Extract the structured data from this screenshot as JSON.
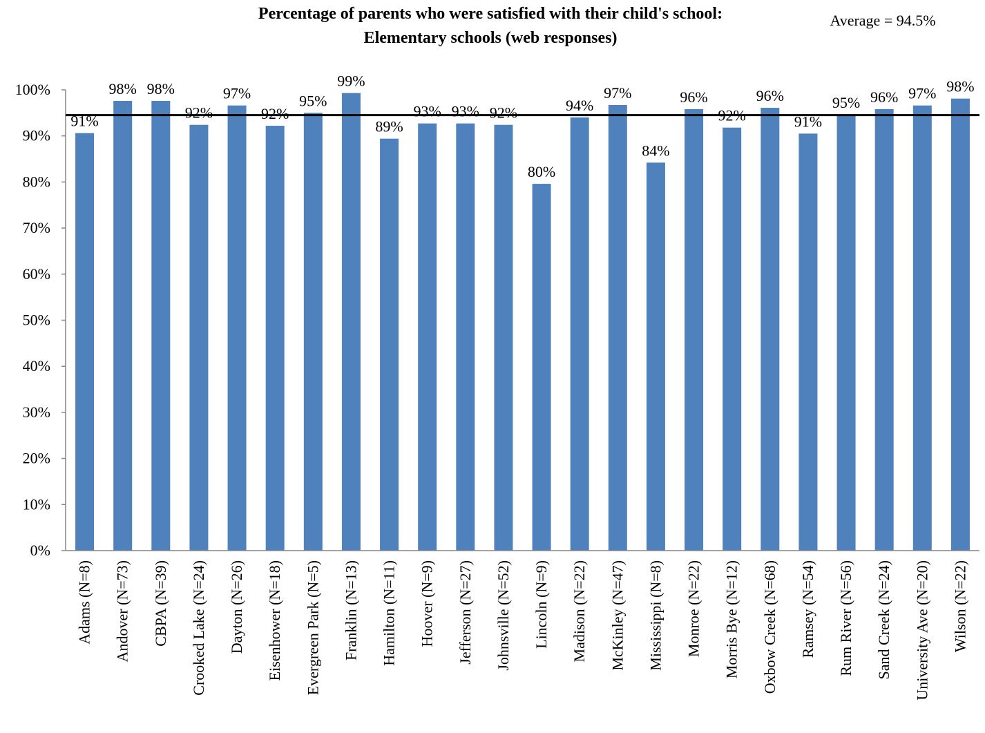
{
  "chart_data": {
    "type": "bar",
    "title": "Percentage of parents who were satisfied with their child's school:",
    "subtitle": "Elementary schools (web responses)",
    "average_label": "Average = 94.5%",
    "average_value": 94.5,
    "categories": [
      "Adams (N=8)",
      "Andover (N=73)",
      "CBPA (N=39)",
      "Crooked Lake (N=24)",
      "Dayton (N=26)",
      "Eisenhower (N=18)",
      "Evergreen Park (N=5)",
      "Franklin (N=13)",
      "Hamilton (N=11)",
      "Hoover (N=9)",
      "Jefferson (N=27)",
      "Johnsville (N=52)",
      "Lincoln (N=9)",
      "Madison (N=22)",
      "McKinley (N=47)",
      "Mississippi (N=8)",
      "Monroe (N=22)",
      "Morris Bye (N=12)",
      "Oxbow Creek (N=68)",
      "Ramsey (N=54)",
      "Rum River (N=56)",
      "Sand Creek (N=24)",
      "University Ave (N=20)",
      "Wilson (N=22)"
    ],
    "values": [
      90.6,
      97.6,
      97.6,
      92.4,
      96.6,
      92.2,
      95.0,
      99.3,
      89.4,
      92.7,
      92.7,
      92.4,
      79.6,
      94.0,
      96.7,
      84.2,
      95.8,
      91.8,
      96.1,
      90.5,
      94.6,
      95.8,
      96.6,
      98.1
    ],
    "data_labels": [
      "91%",
      "98%",
      "98%",
      "92%",
      "97%",
      "92%",
      "95%",
      "99%",
      "89%",
      "93%",
      "93%",
      "92%",
      "80%",
      "94%",
      "97%",
      "84%",
      "96%",
      "92%",
      "96%",
      "91%",
      "95%",
      "96%",
      "97%",
      "98%"
    ],
    "y_ticks": [
      "0%",
      "10%",
      "20%",
      "30%",
      "40%",
      "50%",
      "60%",
      "70%",
      "80%",
      "90%",
      "100%"
    ],
    "ylim": [
      0,
      100
    ],
    "xlabel": "",
    "ylabel": "",
    "grid": false,
    "legend": "none",
    "bar_color": "#4F81BD",
    "average_line_color": "#000000"
  }
}
